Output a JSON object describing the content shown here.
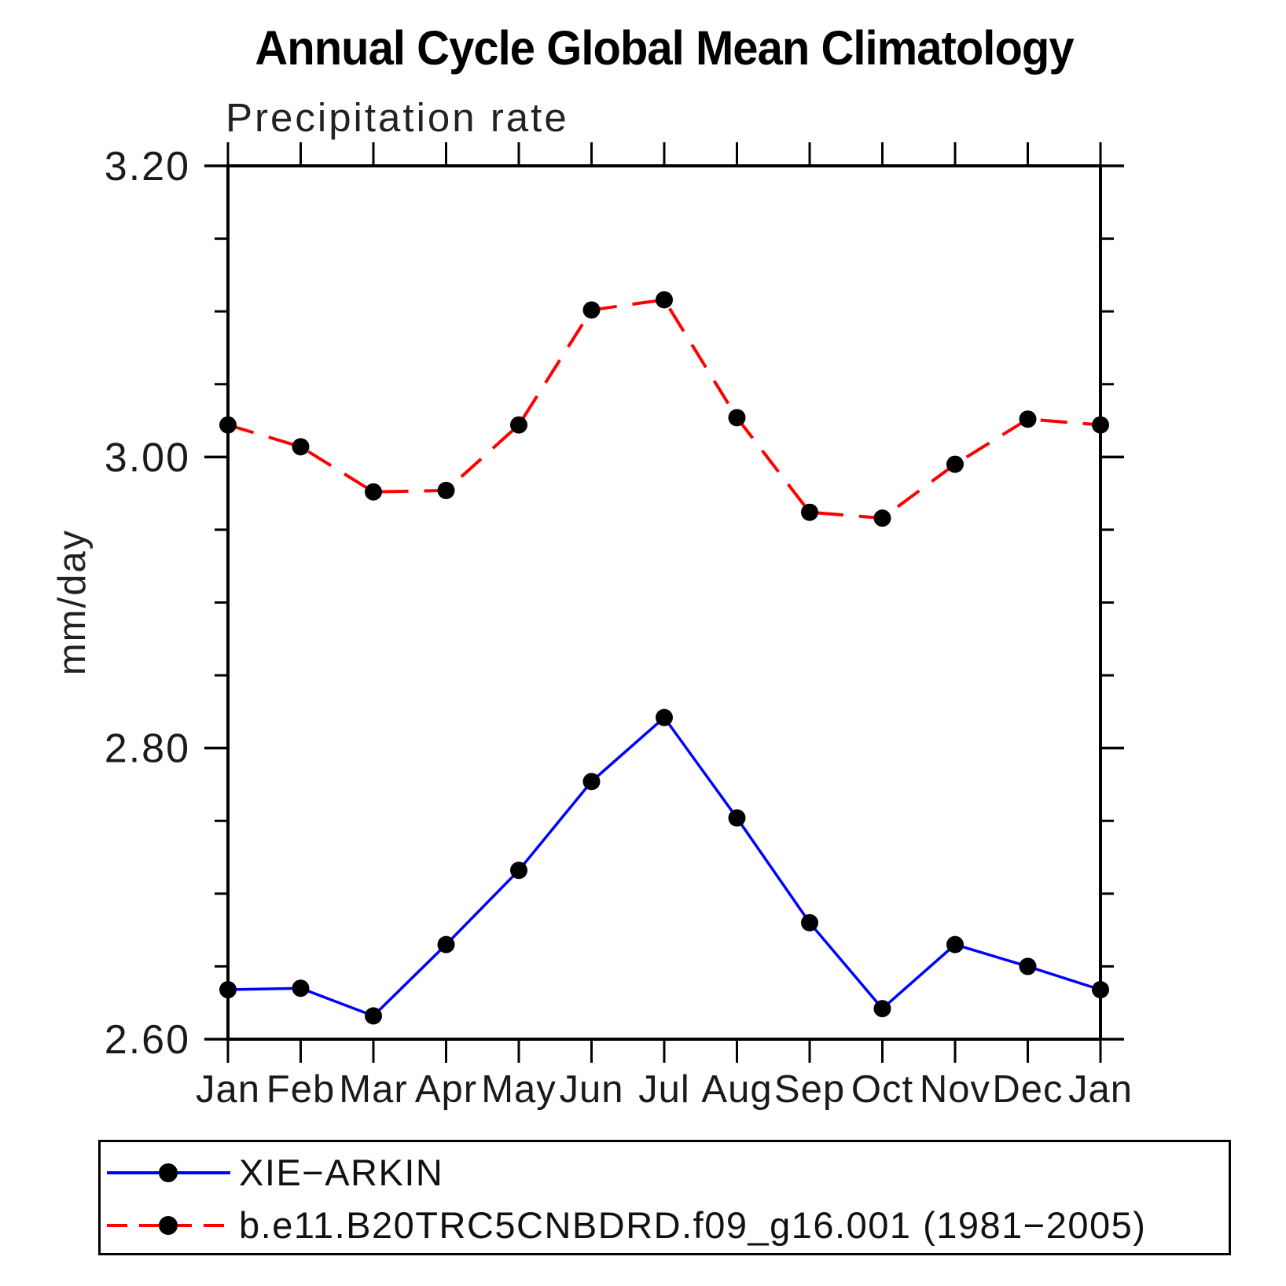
{
  "title": "Annual Cycle Global Mean Climatology",
  "subtitle": "Precipitation rate",
  "chart_data": {
    "type": "line",
    "title": "Annual Cycle Global Mean Climatology",
    "subtitle": "Precipitation rate",
    "xlabel": "",
    "ylabel": "mm/day",
    "x_categories": [
      "Jan",
      "Feb",
      "Mar",
      "Apr",
      "May",
      "Jun",
      "Jul",
      "Aug",
      "Sep",
      "Oct",
      "Nov",
      "Dec",
      "Jan"
    ],
    "ylim": [
      2.6,
      3.2
    ],
    "y_major_ticks": [
      2.6,
      2.8,
      3.0,
      3.2
    ],
    "y_tick_labels": [
      "2.60",
      "2.80",
      "3.00",
      "3.20"
    ],
    "y_minor_step": 0.05,
    "grid": false,
    "legend_position": "bottom-box",
    "axis_color": "#000000",
    "marker_shape": "filled-circle",
    "series": [
      {
        "name": "XIE−ARKIN",
        "color": "#0000ff",
        "line_style": "solid",
        "marker_color": "#000000",
        "values": [
          2.634,
          2.635,
          2.616,
          2.665,
          2.716,
          2.777,
          2.821,
          2.752,
          2.68,
          2.621,
          2.665,
          2.65,
          2.634
        ]
      },
      {
        "name": "b.e11.B20TRC5CNBDRD.f09_g16.001 (1981−2005)",
        "color": "#ff0000",
        "line_style": "dashed",
        "marker_color": "#000000",
        "values": [
          3.022,
          3.007,
          2.976,
          2.977,
          3.022,
          3.101,
          3.108,
          3.027,
          2.962,
          2.958,
          2.995,
          3.026,
          3.022
        ]
      }
    ]
  }
}
